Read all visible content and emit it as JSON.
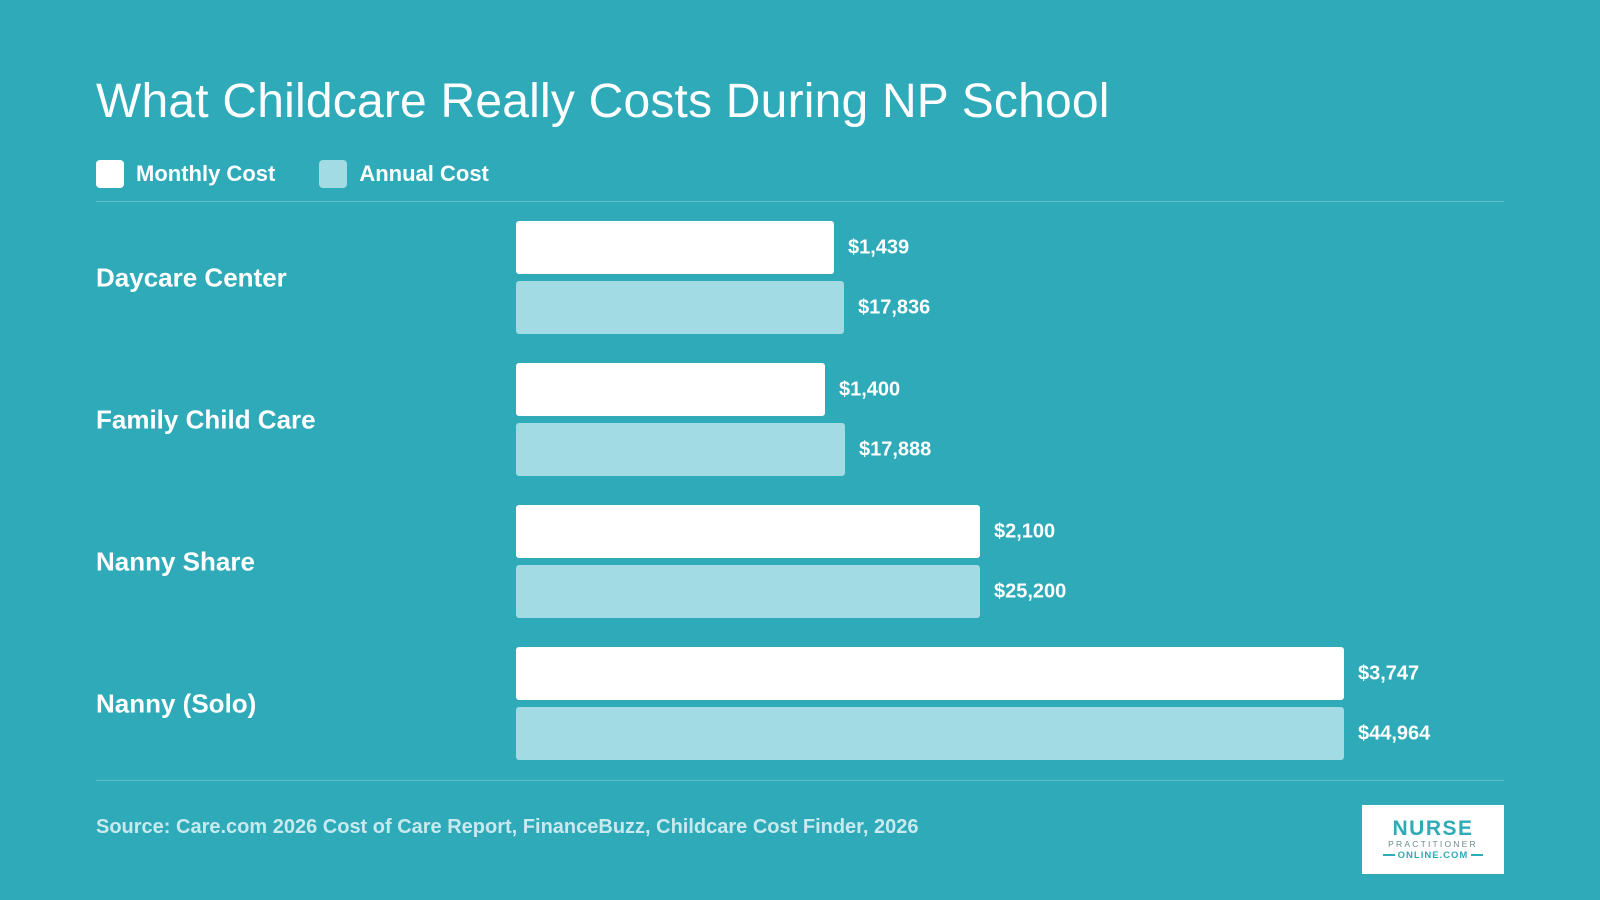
{
  "chart_data": {
    "type": "bar",
    "orientation": "horizontal",
    "title": "What Childcare Really Costs During NP School",
    "categories": [
      "Daycare Center",
      "Family Child Care",
      "Nanny Share",
      "Nanny (Solo)"
    ],
    "series": [
      {
        "name": "Monthly Cost",
        "color": "#ffffff",
        "values": [
          1439,
          1400,
          2100,
          3747
        ],
        "labels": [
          "$1,439",
          "$1,400",
          "$2,100",
          "$3,747"
        ]
      },
      {
        "name": "Annual Cost",
        "color": "#a2dbe3",
        "values": [
          17836,
          17888,
          25200,
          44964
        ],
        "labels": [
          "$17,836",
          "$17,888",
          "$25,200",
          "$44,964"
        ]
      }
    ],
    "legend_position": "top-left",
    "grid": false
  },
  "source": "Source: Care.com 2026 Cost of Care Report, FinanceBuzz, Childcare Cost Finder, 2026",
  "logo": {
    "line1": "NURSE",
    "line2": "PRACTITIONER",
    "line3": "ONLINE.COM"
  },
  "colors": {
    "background": "#2eaab9",
    "monthly": "#ffffff",
    "annual": "#a2dbe3"
  }
}
